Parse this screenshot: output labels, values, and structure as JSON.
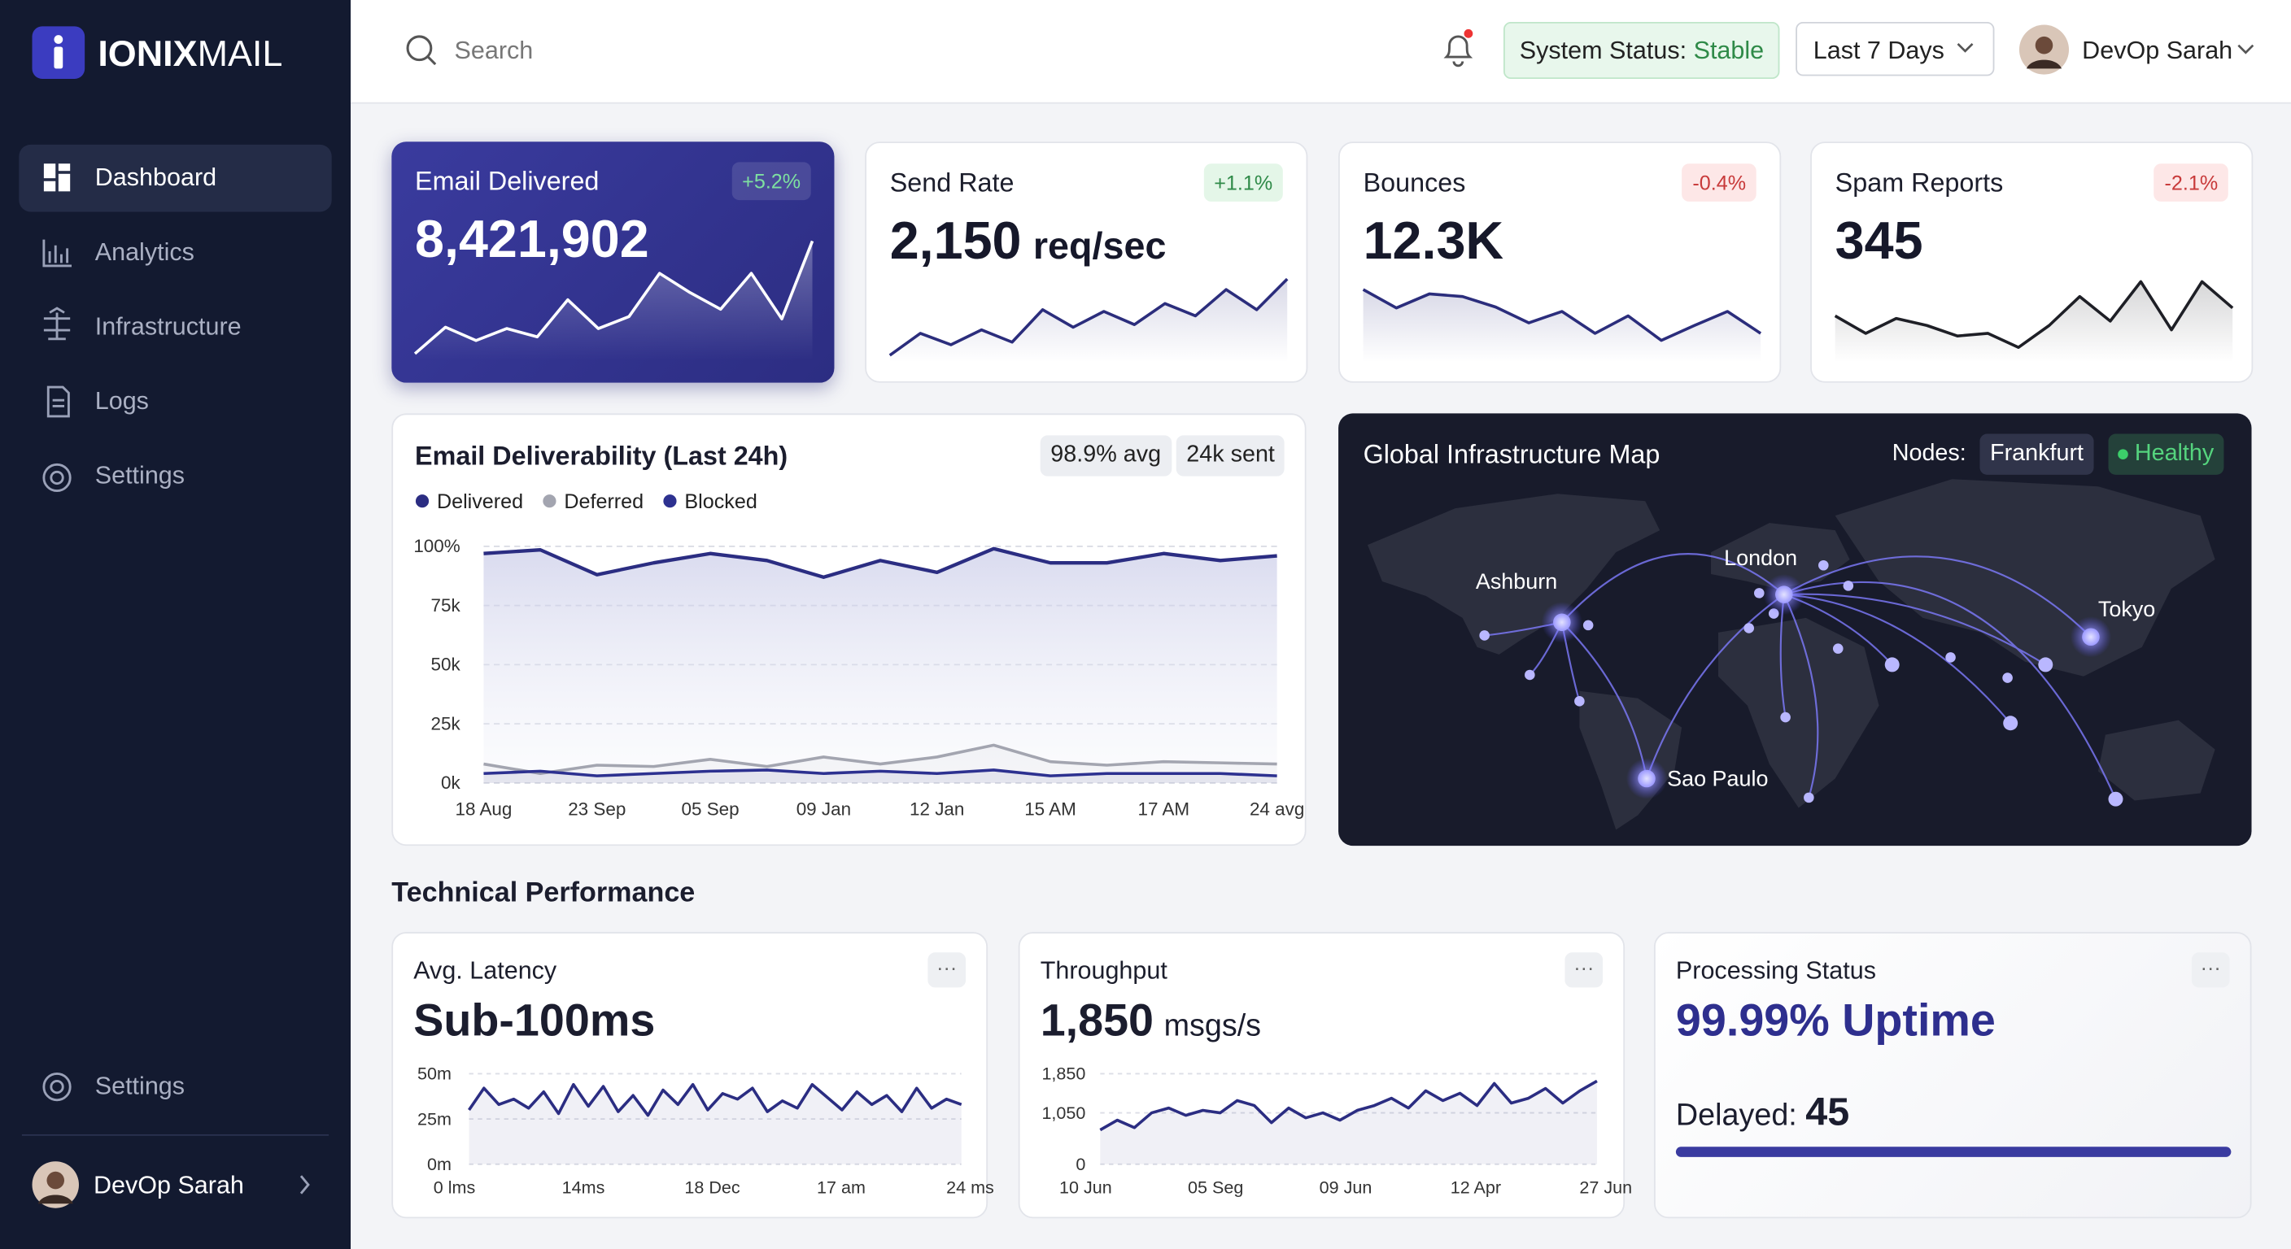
{
  "sidebar": {
    "brand_bold": "IONIX",
    "brand_light": "MAIL",
    "nav": [
      "Dashboard",
      "Analytics",
      "Infrastructure",
      "Logs",
      "Settings"
    ],
    "active": 0,
    "footer_settings": "Settings",
    "user": "DevOp Sarah"
  },
  "topbar": {
    "search": "Search",
    "status_label": "System Status:",
    "status_value": "Stable",
    "range": "Last 7 Days",
    "user": "DevOp Sarah"
  },
  "kpis": [
    {
      "title": "Email Delivered",
      "value": "8,421,902",
      "change": "+5.2%",
      "color": "#ffffff",
      "ylim": [
        0,
        100
      ],
      "spark": [
        6,
        28,
        17,
        27,
        20,
        51,
        27,
        37,
        73,
        57,
        43,
        73,
        35,
        100
      ]
    },
    {
      "title": "Send Rate",
      "value": "2,150",
      "unit": "req/sec",
      "change": "+1.1%",
      "color": "#2b2d7c",
      "ylim": [
        0,
        100
      ],
      "spark": [
        8,
        33,
        20,
        37,
        23,
        60,
        40,
        58,
        43,
        67,
        53,
        83,
        60,
        95
      ]
    },
    {
      "title": "Bounces",
      "value": "12.3K",
      "change": "-0.4%",
      "color": "#2b2d7c",
      "ylim": [
        0,
        100
      ],
      "spark": [
        83,
        62,
        78,
        75,
        63,
        45,
        58,
        33,
        53,
        25,
        42,
        58,
        33
      ]
    },
    {
      "title": "Spam Reports",
      "value": "345",
      "change": "-2.1%",
      "color": "#1e1f26",
      "ylim": [
        0,
        100
      ],
      "spark": [
        53,
        33,
        50,
        42,
        30,
        33,
        17,
        42,
        75,
        47,
        92,
        37,
        92,
        62
      ]
    }
  ],
  "deliverability": {
    "title": "Email Deliverability (Last 24h)",
    "badges": [
      "98.9% avg",
      "24k sent"
    ],
    "categories": [
      "18 Aug",
      null,
      "23 Sep",
      null,
      "05 Sep",
      null,
      "09 Jan",
      null,
      "12 Jan",
      null,
      "15 AM",
      null,
      "17 AM",
      null,
      "24 avg"
    ],
    "series": [
      {
        "name": "Delivered",
        "color": "#2b2d82",
        "values": [
          97,
          98.5,
          88,
          93,
          97,
          94,
          87,
          94,
          89,
          99,
          93,
          93,
          97,
          94,
          96
        ]
      },
      {
        "name": "Deferred",
        "color": "#a3a5b0",
        "values": [
          8,
          4,
          7.5,
          7,
          10,
          7,
          11,
          8,
          11,
          16,
          9,
          7.5,
          9,
          8.5,
          8
        ]
      },
      {
        "name": "Blocked",
        "color": "#2d3190",
        "values": [
          4,
          5,
          3,
          4,
          5,
          5.5,
          4,
          5,
          4,
          5.5,
          3,
          4,
          4,
          4,
          3
        ]
      }
    ],
    "ylim": [
      0,
      100
    ],
    "yticks": [
      {
        "value": 0,
        "label": "0k"
      },
      {
        "value": 25,
        "label": "25k"
      },
      {
        "value": 50,
        "label": "50k"
      },
      {
        "value": 75,
        "label": "75k"
      },
      {
        "value": 100,
        "label": "100%"
      }
    ],
    "grid": true
  },
  "map": {
    "title": "Global Infrastructure Map",
    "nodes_label": "Nodes:",
    "node": "Frankfurt",
    "health": "Healthy",
    "cities": [
      "Ashburn",
      "London",
      "Tokyo",
      "Sao Paulo"
    ]
  },
  "section_title": "Technical Performance",
  "latency": {
    "title": "Avg. Latency",
    "value": "Sub-100ms",
    "color": "#2b2d82",
    "ylim": [
      0,
      50
    ],
    "yticks": [
      {
        "value": 0,
        "label": "0m"
      },
      {
        "value": 25,
        "label": "25m"
      },
      {
        "value": 50,
        "label": "50m"
      }
    ],
    "xtick_labels": [
      "0 lms",
      "14ms",
      "18 Dec",
      "17 am",
      "24 ms"
    ],
    "values": [
      30,
      42,
      33,
      36,
      31,
      40,
      28,
      44,
      32,
      43,
      29,
      38,
      27,
      41,
      33,
      44,
      30,
      39,
      36,
      42,
      29,
      35,
      31,
      44,
      37,
      30,
      40,
      33,
      38,
      29,
      42,
      31,
      36,
      33
    ]
  },
  "throughput": {
    "title": "Throughput",
    "value": "1,850",
    "unit": "msgs/s",
    "color": "#2b2d82",
    "ylim": [
      0,
      1850
    ],
    "yticks": [
      0,
      {
        "value": 1050,
        "label": "1,050"
      },
      {
        "value": 1850,
        "label": "1,850"
      }
    ],
    "xtick_labels": [
      "10 Jun",
      "05 Seg",
      "09 Jun",
      "12 Apr",
      "27 Jun"
    ],
    "values": [
      700,
      900,
      750,
      1050,
      1150,
      1000,
      1100,
      1050,
      1300,
      1200,
      850,
      1150,
      950,
      1050,
      900,
      1100,
      1200,
      1350,
      1150,
      1500,
      1300,
      1450,
      1200,
      1650,
      1250,
      1350,
      1550,
      1250,
      1500,
      1700
    ]
  },
  "processing": {
    "title": "Processing Status",
    "value": "99.99% Uptime",
    "delayed_label": "Delayed:",
    "delayed_value": "45"
  }
}
